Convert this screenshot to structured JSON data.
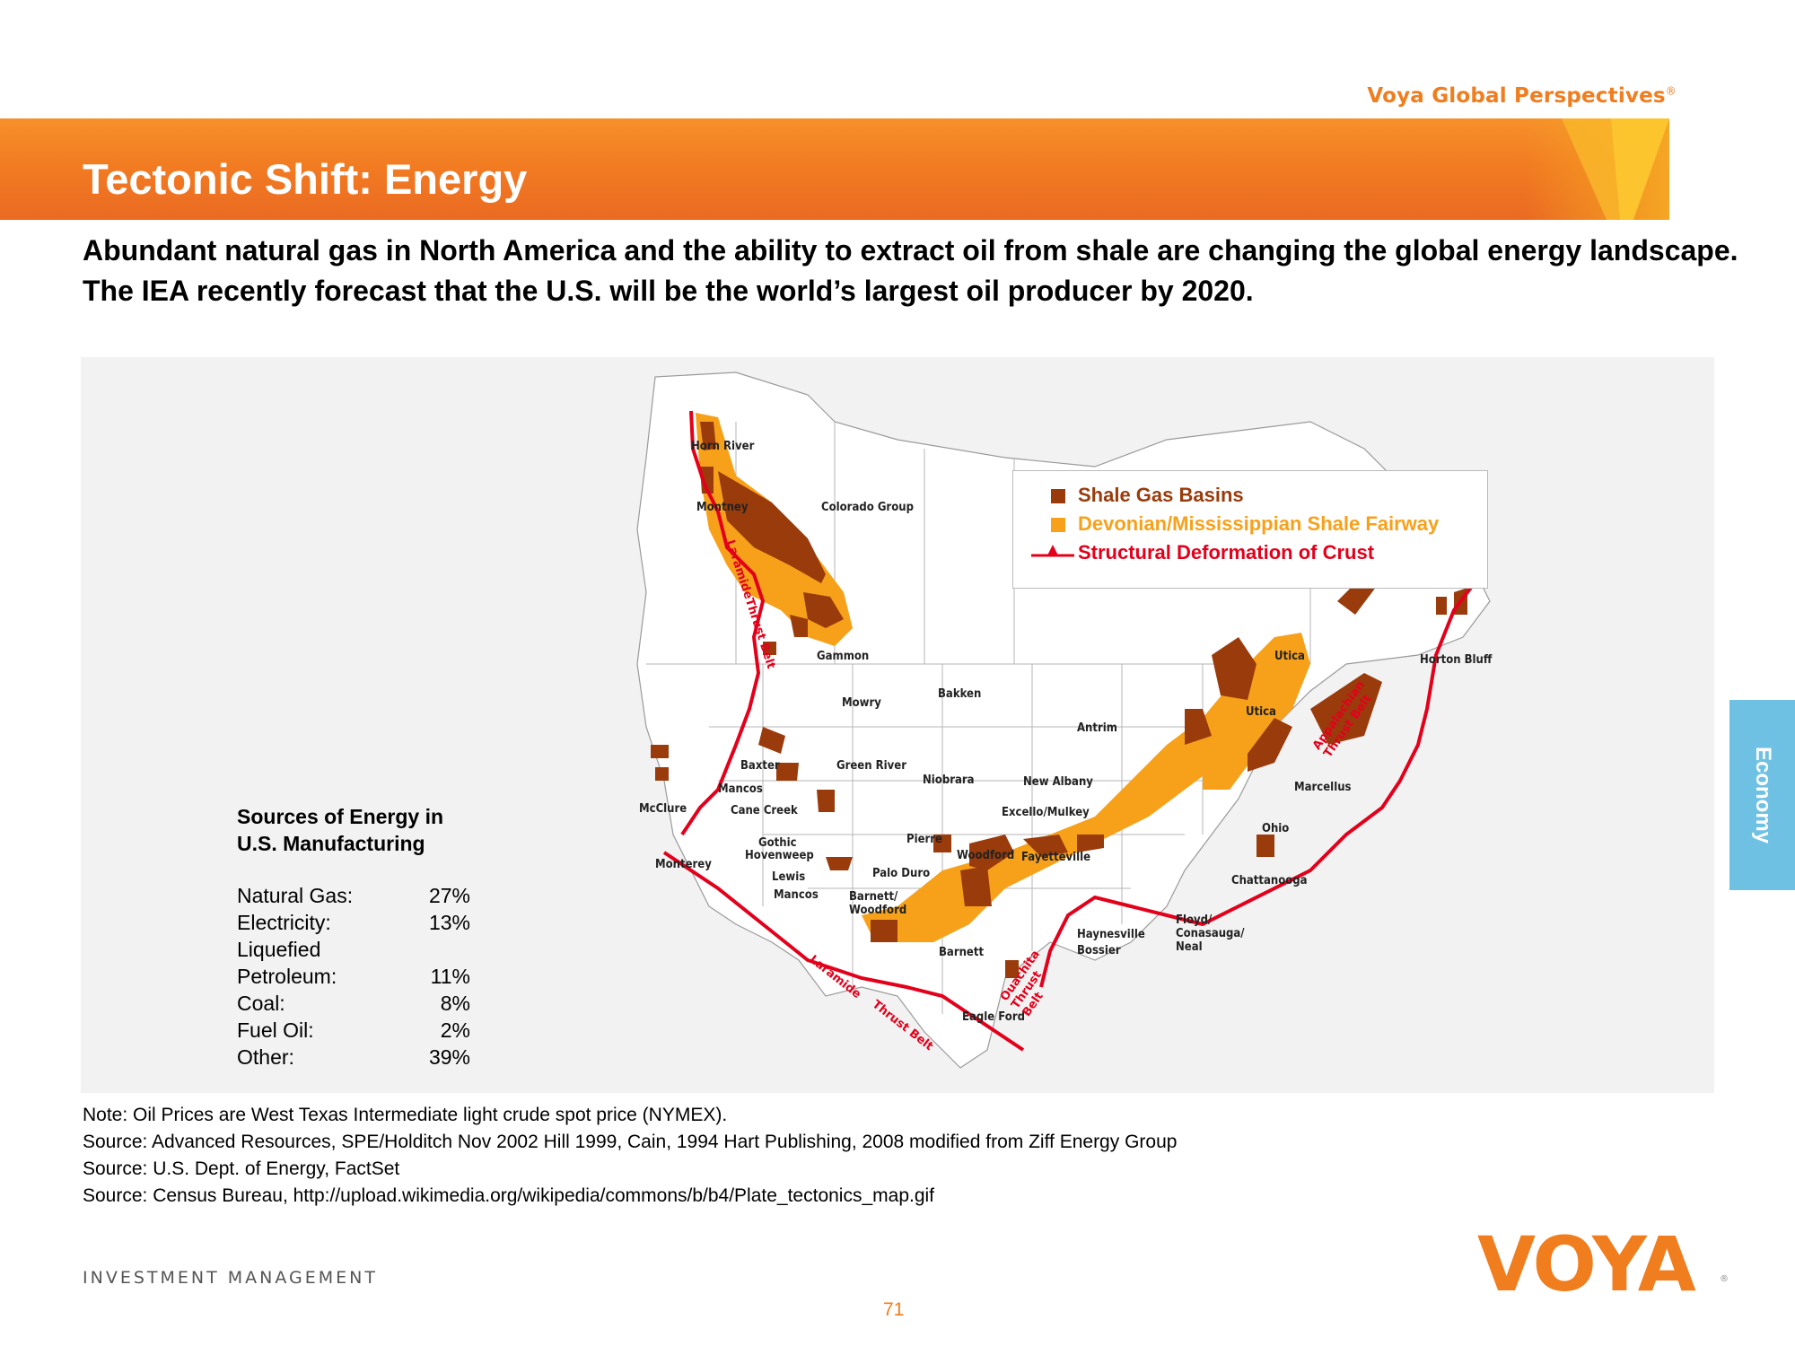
{
  "header": {
    "brand": "Voya Global Perspectives",
    "brand_mark": "®",
    "title": "Tectonic Shift: Energy",
    "lead": "Abundant natural gas in North America and the ability to extract oil from shale are changing the global energy landscape. The IEA recently forecast that the U.S. will be the world’s largest oil producer by 2020."
  },
  "energy_sources": {
    "title": "Sources of Energy in U.S. Manufacturing",
    "rows": [
      {
        "label": "Natural Gas:",
        "value": "27%"
      },
      {
        "label": "Electricity:",
        "value": "13%"
      },
      {
        "label": "Liquefied",
        "value": ""
      },
      {
        "label": "Petroleum:",
        "value": "11%"
      },
      {
        "label": "Coal:",
        "value": "8%"
      },
      {
        "label": "Fuel Oil:",
        "value": "2%"
      },
      {
        "label": "Other:",
        "value": "39%"
      }
    ]
  },
  "map": {
    "legend": {
      "shale": {
        "label": "Shale Gas Basins",
        "color": "#9a3b0c"
      },
      "fairway": {
        "label": "Devonian/Mississippian Shale Fairway",
        "color": "#f7a11a"
      },
      "deformation": {
        "label": "Structural Deformation of Crust",
        "color": "#e3001b"
      }
    },
    "labels": {
      "horn_river": "Horn River",
      "montney": "Montney",
      "colorado_group": "Colorado Group",
      "gammon": "Gammon",
      "mowry": "Mowry",
      "bakken": "Bakken",
      "baxter": "Baxter",
      "mancos": "Mancos",
      "green_river": "Green River",
      "niobrara": "Niobrara",
      "new_albany": "New Albany",
      "antrim": "Antrim",
      "utica1": "Utica",
      "utica2": "Utica",
      "horton_bluff": "Horton Bluff",
      "marcellus": "Marcellus",
      "ohio": "Ohio",
      "chattanooga": "Chattanooga",
      "mcclure": "McClure",
      "cane_creek": "Cane Creek",
      "excello": "Excello/Mulkey",
      "gothic": "Gothic",
      "hovenweep": "Hovenweep",
      "pierre": "Pierre",
      "woodford": "Woodford",
      "fayetteville": "Fayetteville",
      "monterey": "Monterey",
      "lewis": "Lewis",
      "mancos2": "Mancos",
      "palo_duro": "Palo Duro",
      "barnett_woodford": "Barnett/ Woodford",
      "barnett": "Barnett",
      "haynesville": "Haynesville",
      "bossier": "Bossier",
      "floyd": "Floyd/ Conasauga/ Neal",
      "eagle_ford": "Eagle Ford"
    },
    "belts": {
      "laramide_north": "LaramideThrust Belt",
      "laramide_south": "Laramide",
      "thrust_belt_south": "Thrust Belt",
      "ouachita": "Ouachita Thrust Belt",
      "appalachian": "Appalachian Thrust Belt"
    }
  },
  "notes": [
    "Note: Oil Prices are West Texas Intermediate light crude spot price (NYMEX).",
    "Source: Advanced Resources, SPE/Holditch Nov 2002 Hill 1999, Cain, 1994 Hart Publishing, 2008 modified from Ziff Energy Group",
    "Source: U.S. Dept. of Energy, FactSet",
    "Source: Census Bureau, http://upload.wikimedia.org/wikipedia/commons/b/b4/Plate_tectonics_map.gif"
  ],
  "sidebar": {
    "tab": "Economy"
  },
  "footer": {
    "division": "INVESTMENT MANAGEMENT",
    "logo": "VOYA",
    "page": "71"
  }
}
